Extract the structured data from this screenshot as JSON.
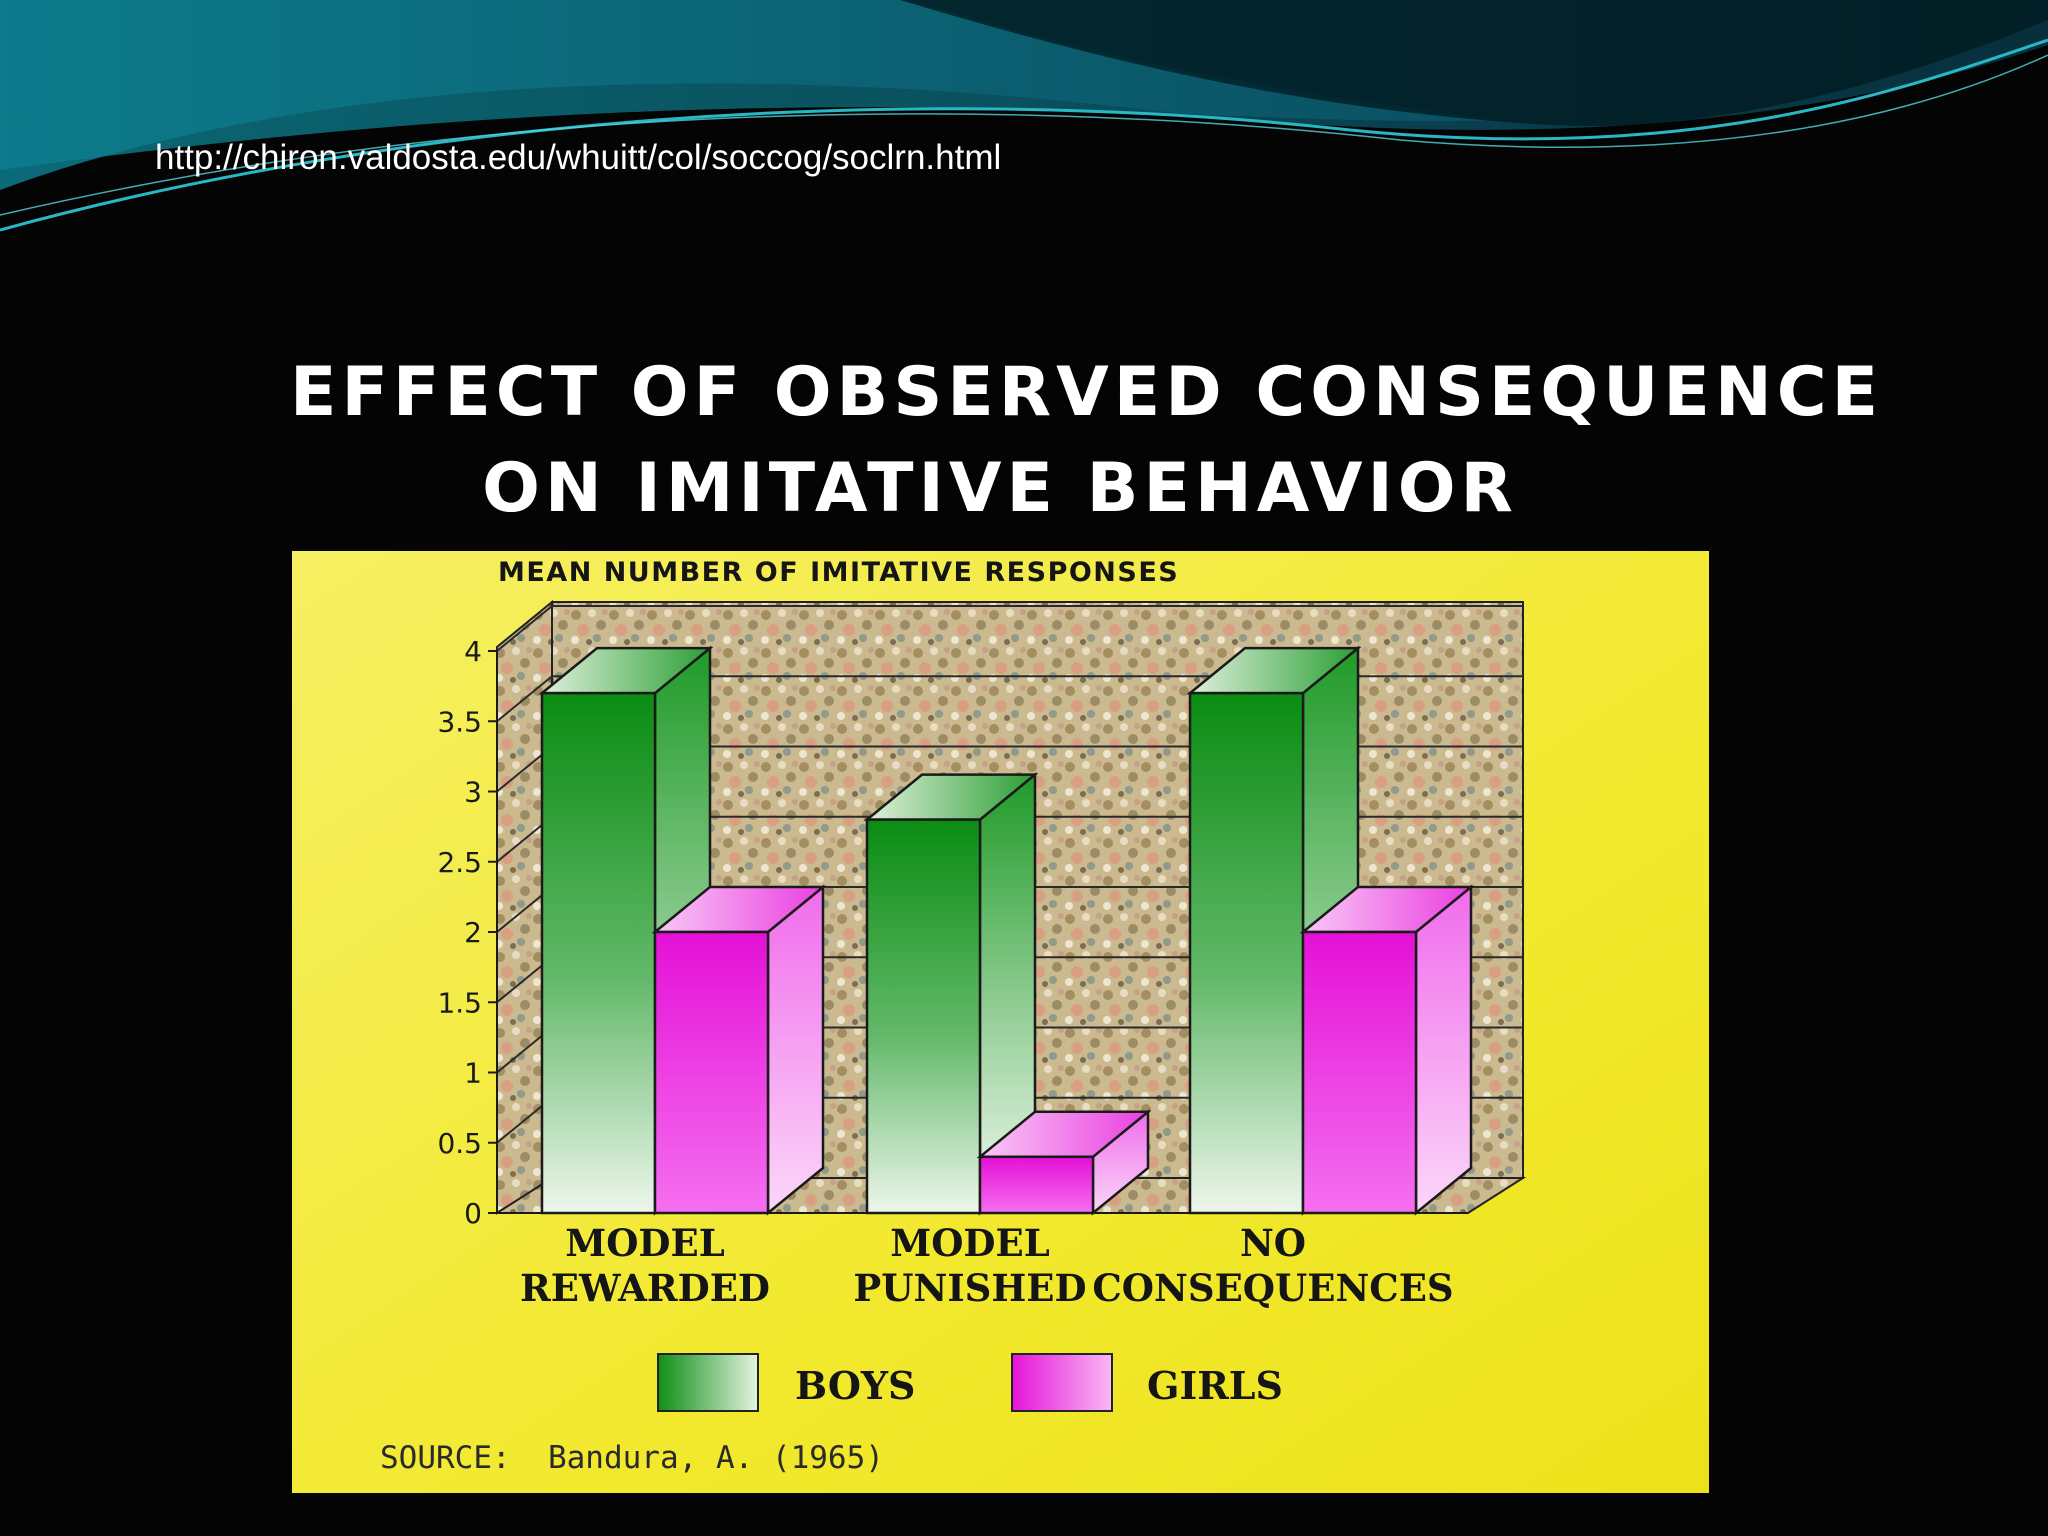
{
  "slide": {
    "source_url": "http://chiron.valdosta.edu/whuitt/col/soccog/soclrn.html"
  },
  "chart_data": {
    "type": "bar",
    "title_lines": [
      "EFFECT OF OBSERVED CONSEQUENCE",
      "ON IMITATIVE BEHAVIOR"
    ],
    "ylabel": "MEAN NUMBER OF IMITATIVE RESPONSES",
    "xlabel": "",
    "categories": [
      [
        "MODEL",
        "REWARDED"
      ],
      [
        "MODEL",
        "PUNISHED"
      ],
      [
        "NO",
        "CONSEQUENCES"
      ]
    ],
    "series": [
      {
        "name": "BOYS",
        "values": [
          3.7,
          2.8,
          3.7
        ]
      },
      {
        "name": "GIRLS",
        "values": [
          2.0,
          0.4,
          2.0
        ]
      }
    ],
    "ylim": [
      0,
      4
    ],
    "yticks": [
      "0",
      "0.5",
      "1",
      "1.5",
      "2",
      "2.5",
      "3",
      "3.5",
      "4"
    ],
    "grid": true,
    "legend_position": "bottom",
    "source_note": "SOURCE:  Bandura, A. (1965)",
    "colors": {
      "boys": "#1a9a1a",
      "girls": "#ee22dd",
      "panel": "#f3ec35",
      "background": "#040404",
      "header": "#0a4f5e"
    }
  }
}
